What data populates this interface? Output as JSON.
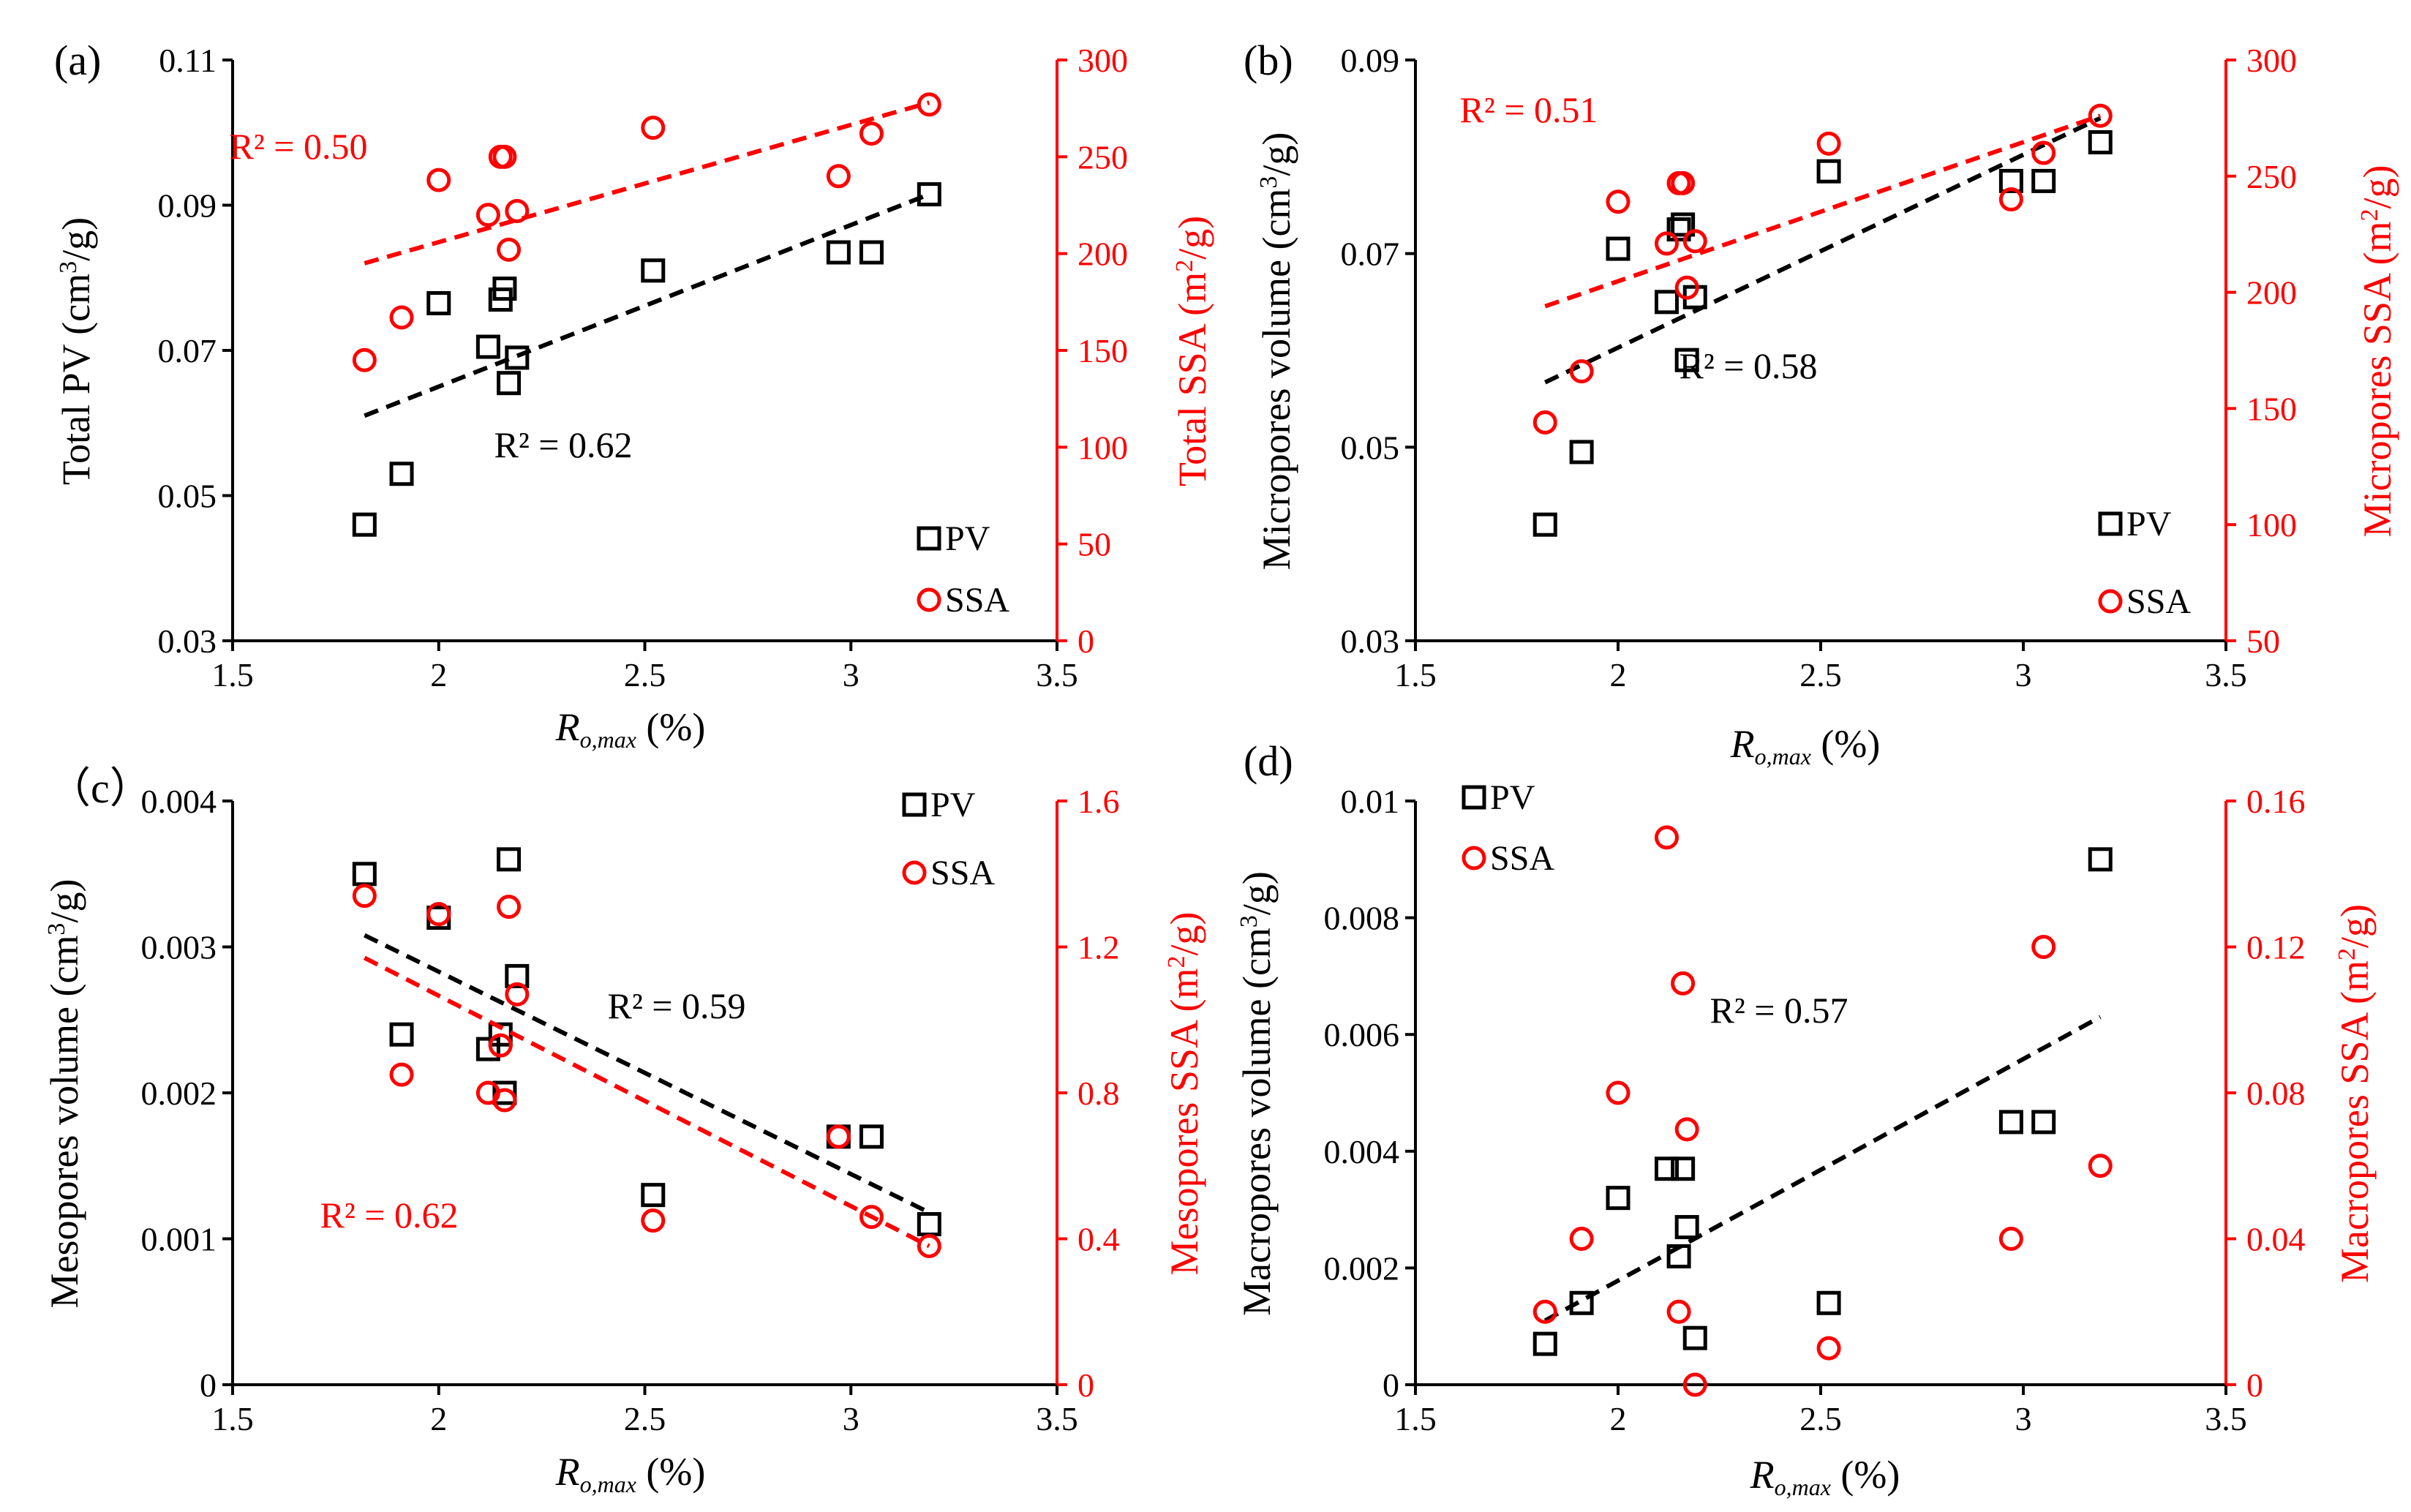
{
  "colors": {
    "pv": "#000000",
    "ssa": "#ff0000",
    "axis_left": "#000000",
    "axis_right": "#ff0000"
  },
  "chart_data": [
    {
      "type": "scatter",
      "panel": "(a)",
      "xlabel_main": "R",
      "xlabel_sub": "o,max",
      "xlabel_unit": " (%)",
      "xlim": [
        1.5,
        3.5
      ],
      "xticks": [
        1.5,
        2,
        2.5,
        3,
        3.5
      ],
      "ylabel_left": {
        "pre": "Total PV (cm",
        "sup": "3",
        "post": "/g)"
      },
      "ylabel_right": {
        "pre": "Total SSA (m",
        "sup": "2",
        "post": "/g)"
      },
      "ylim_left": [
        0.03,
        0.11
      ],
      "yticks_left": [
        0.03,
        0.05,
        0.07,
        0.09,
        0.11
      ],
      "yticks_left_labels": [
        "0.03",
        "0.05",
        "0.07",
        "0.09",
        "0.11"
      ],
      "ylim_right": [
        0,
        300
      ],
      "yticks_right": [
        0,
        50,
        100,
        150,
        200,
        250,
        300
      ],
      "yticks_right_labels": [
        "0",
        "50",
        "100",
        "150",
        "200",
        "250",
        "300"
      ],
      "series": [
        {
          "name": "PV",
          "axis": "left",
          "marker": "square",
          "x": [
            1.82,
            1.91,
            2.0,
            2.12,
            2.15,
            2.16,
            2.17,
            2.19,
            2.52,
            2.97,
            3.05,
            3.19
          ],
          "y": [
            0.046,
            0.053,
            0.0765,
            0.0705,
            0.077,
            0.0785,
            0.0655,
            0.069,
            0.081,
            0.0835,
            0.0835,
            0.0915
          ],
          "trend": [
            [
              1.82,
              0.061
            ],
            [
              3.19,
              0.0915
            ]
          ],
          "r2_label": "R² = 0.62"
        },
        {
          "name": "SSA",
          "axis": "right",
          "marker": "circle",
          "x": [
            1.82,
            1.91,
            2.0,
            2.12,
            2.15,
            2.16,
            2.17,
            2.19,
            2.52,
            2.97,
            3.05,
            3.19
          ],
          "y": [
            145,
            167,
            238,
            220,
            250,
            250,
            202,
            222,
            265,
            240,
            262,
            277
          ],
          "trend": [
            [
              1.82,
              195
            ],
            [
              3.19,
              278
            ]
          ],
          "r2_label": "R² = 0.50"
        }
      ],
      "legend": [
        "PV",
        "SSA"
      ],
      "legend_position": "bottom-right"
    },
    {
      "type": "scatter",
      "panel": "(b)",
      "xlabel_main": "R",
      "xlabel_sub": "o,max",
      "xlabel_unit": " (%)",
      "xlim": [
        1.5,
        3.5
      ],
      "xticks": [
        1.5,
        2,
        2.5,
        3,
        3.5
      ],
      "ylabel_left": {
        "pre": "Micropores volume (cm",
        "sup": "3",
        "post": "/g)"
      },
      "ylabel_right": {
        "pre": "Micropores SSA (m",
        "sup": "2",
        "post": "/g)"
      },
      "ylim_left": [
        0.03,
        0.09
      ],
      "yticks_left": [
        0.03,
        0.05,
        0.07,
        0.09
      ],
      "yticks_left_labels": [
        "0.03",
        "0.05",
        "0.07",
        "0.09"
      ],
      "ylim_right": [
        50,
        300
      ],
      "yticks_right": [
        50,
        100,
        150,
        200,
        250,
        300
      ],
      "yticks_right_labels": [
        "50",
        "100",
        "150",
        "200",
        "250",
        "300"
      ],
      "series": [
        {
          "name": "PV",
          "axis": "left",
          "marker": "square",
          "x": [
            1.82,
            1.91,
            2.0,
            2.12,
            2.15,
            2.16,
            2.17,
            2.19,
            2.52,
            2.97,
            3.05,
            3.19
          ],
          "y": [
            0.042,
            0.0495,
            0.0705,
            0.065,
            0.0725,
            0.073,
            0.059,
            0.0655,
            0.0785,
            0.0775,
            0.0775,
            0.0815
          ],
          "trend": [
            [
              1.82,
              0.0567
            ],
            [
              3.19,
              0.084
            ]
          ],
          "r2_label": "R² = 0.58"
        },
        {
          "name": "SSA",
          "axis": "right",
          "marker": "circle",
          "x": [
            1.82,
            1.91,
            2.0,
            2.12,
            2.15,
            2.16,
            2.17,
            2.19,
            2.52,
            2.97,
            3.05,
            3.19
          ],
          "y": [
            144,
            166,
            239,
            221,
            247,
            247,
            202,
            222,
            264,
            240,
            260,
            276
          ],
          "trend": [
            [
              1.82,
              194
            ],
            [
              3.19,
              276
            ]
          ],
          "r2_label": "R² = 0.51"
        }
      ],
      "legend": [
        "PV",
        "SSA"
      ],
      "legend_position": "bottom-right"
    },
    {
      "type": "scatter",
      "panel": "（c）",
      "xlabel_main": "R",
      "xlabel_sub": "o,max",
      "xlabel_unit": " (%)",
      "xlim": [
        1.5,
        3.5
      ],
      "xticks": [
        1.5,
        2,
        2.5,
        3,
        3.5
      ],
      "ylabel_left": {
        "pre": "Mesopores volume (cm",
        "sup": "3",
        "post": "/g)"
      },
      "ylabel_right": {
        "pre": "Mesopores SSA (m",
        "sup": "2",
        "post": "/g)"
      },
      "ylim_left": [
        0,
        0.004
      ],
      "yticks_left": [
        0,
        0.001,
        0.002,
        0.003,
        0.004
      ],
      "yticks_left_labels": [
        "0",
        "0.001",
        "0.002",
        "0.003",
        "0.004"
      ],
      "ylim_right": [
        0,
        1.6
      ],
      "yticks_right": [
        0,
        0.4,
        0.8,
        1.2,
        1.6
      ],
      "yticks_right_labels": [
        "0",
        "0.4",
        "0.8",
        "1.2",
        "1.6"
      ],
      "series": [
        {
          "name": "PV",
          "axis": "left",
          "marker": "square",
          "x": [
            1.82,
            1.91,
            2.0,
            2.12,
            2.15,
            2.16,
            2.17,
            2.19,
            2.52,
            2.97,
            3.05,
            3.19
          ],
          "y": [
            0.0035,
            0.0024,
            0.0032,
            0.0023,
            0.0024,
            0.002,
            0.0036,
            0.0028,
            0.0013,
            0.0017,
            0.0017,
            0.0011
          ],
          "trend": [
            [
              1.82,
              0.00308
            ],
            [
              3.19,
              0.00118
            ]
          ],
          "r2_label": "R² = 0.59"
        },
        {
          "name": "SSA",
          "axis": "right",
          "marker": "circle",
          "x": [
            1.82,
            1.91,
            2.0,
            2.12,
            2.15,
            2.16,
            2.17,
            2.19,
            2.52,
            2.97,
            3.05,
            3.19
          ],
          "y": [
            1.34,
            0.85,
            1.29,
            0.8,
            0.93,
            0.78,
            1.31,
            1.07,
            0.45,
            0.68,
            0.46,
            0.38
          ],
          "trend": [
            [
              1.82,
              1.17
            ],
            [
              3.19,
              0.38
            ]
          ],
          "r2_label": "R² = 0.62"
        }
      ],
      "legend": [
        "PV",
        "SSA"
      ],
      "legend_position": "top-right"
    },
    {
      "type": "scatter",
      "panel": "(d)",
      "xlabel_main": "R",
      "xlabel_sub": "o,max",
      "xlabel_unit": " (%)",
      "xlim": [
        1.5,
        3.5
      ],
      "xticks": [
        1.5,
        2,
        2.5,
        3,
        3.5
      ],
      "ylabel_left": {
        "pre": "Macropores volume (cm",
        "sup": "3",
        "post": "/g)"
      },
      "ylabel_right": {
        "pre": "Macropores SSA (m",
        "sup": "2",
        "post": "/g)"
      },
      "ylim_left": [
        0,
        0.01
      ],
      "yticks_left": [
        0,
        0.002,
        0.004,
        0.006,
        0.008,
        0.01
      ],
      "yticks_left_labels": [
        "0",
        "0.002",
        "0.004",
        "0.006",
        "0.008",
        "0.01"
      ],
      "ylim_right": [
        0,
        0.16
      ],
      "yticks_right": [
        0,
        0.04,
        0.08,
        0.12,
        0.16
      ],
      "yticks_right_labels": [
        "0",
        "0.04",
        "0.08",
        "0.12",
        "0.16"
      ],
      "series": [
        {
          "name": "PV",
          "axis": "left",
          "marker": "square",
          "x": [
            1.82,
            1.91,
            2.0,
            2.12,
            2.15,
            2.16,
            2.17,
            2.19,
            2.52,
            2.97,
            3.05,
            3.19
          ],
          "y": [
            0.0007,
            0.0014,
            0.0032,
            0.0037,
            0.0022,
            0.0037,
            0.0027,
            0.0008,
            0.0014,
            0.0045,
            0.0045,
            0.009
          ],
          "trend": [
            [
              1.82,
              0.0011
            ],
            [
              3.19,
              0.0063
            ]
          ],
          "r2_label": "R² = 0.57"
        },
        {
          "name": "SSA",
          "axis": "right",
          "marker": "circle",
          "x": [
            1.82,
            1.91,
            2.0,
            2.12,
            2.15,
            2.16,
            2.17,
            2.19,
            2.52,
            2.97,
            3.05,
            3.19
          ],
          "y": [
            0.02,
            0.04,
            0.08,
            0.15,
            0.02,
            0.11,
            0.07,
            0.0,
            0.01,
            0.04,
            0.12,
            0.06
          ],
          "trend": null,
          "r2_label": ""
        }
      ],
      "legend": [
        "PV",
        "SSA"
      ],
      "legend_position": "top-left"
    }
  ]
}
